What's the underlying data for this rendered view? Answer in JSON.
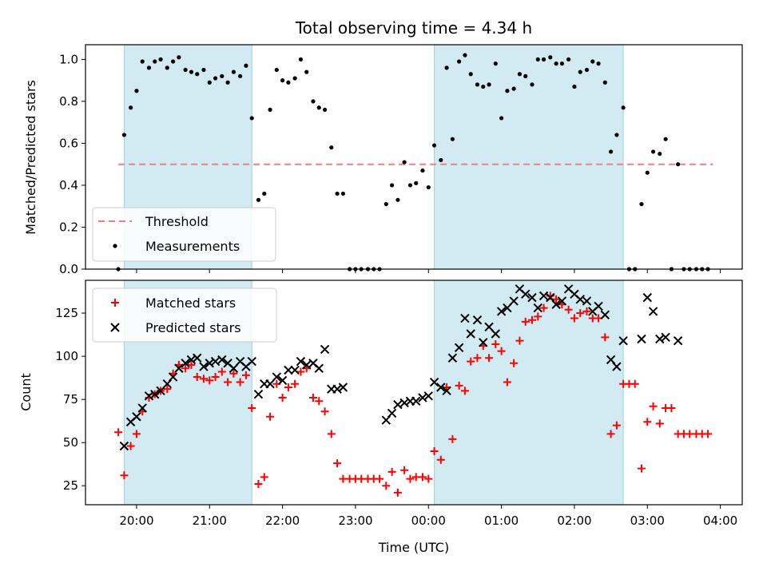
{
  "chart_data": {
    "title": "Total observing time = 4.34 h",
    "xlabel": "Time (UTC)",
    "x_unit": "hours since 00:00 UTC (negative = previous evening)",
    "xlim": [
      -4.7,
      4.3
    ],
    "x_ticks": [
      {
        "value": -4,
        "label": "20:00"
      },
      {
        "value": -3,
        "label": "21:00"
      },
      {
        "value": -2,
        "label": "22:00"
      },
      {
        "value": -1,
        "label": "23:00"
      },
      {
        "value": 0,
        "label": "00:00"
      },
      {
        "value": 1,
        "label": "01:00"
      },
      {
        "value": 2,
        "label": "02:00"
      },
      {
        "value": 3,
        "label": "03:00"
      },
      {
        "value": 4,
        "label": "04:00"
      }
    ],
    "shaded_intervals": [
      [
        -4.17,
        -2.42
      ],
      [
        0.08,
        2.67
      ]
    ],
    "shade_color": "#add8e6",
    "panels": [
      {
        "type": "scatter",
        "ylabel": "Matched/Predicted stars",
        "ylim": [
          0,
          1.07
        ],
        "y_ticks": [
          0.0,
          0.2,
          0.4,
          0.6,
          0.8,
          1.0
        ],
        "y_tick_labels": [
          "0.0",
          "0.2",
          "0.4",
          "0.6",
          "0.8",
          "1.0"
        ],
        "legend_position": "lower-left",
        "threshold": {
          "name": "Threshold",
          "y": 0.5,
          "x_range": [
            -4.25,
            3.9
          ],
          "color": "#f08080"
        },
        "series": [
          {
            "name": "Measurements",
            "marker": "dot",
            "color": "#000000",
            "x": [
              -4.25,
              -4.17,
              -4.08,
              -4.0,
              -3.92,
              -3.83,
              -3.75,
              -3.67,
              -3.58,
              -3.5,
              -3.42,
              -3.33,
              -3.25,
              -3.17,
              -3.08,
              -3.0,
              -2.92,
              -2.83,
              -2.75,
              -2.67,
              -2.58,
              -2.5,
              -2.42,
              -2.33,
              -2.25,
              -2.17,
              -2.08,
              -2.0,
              -1.92,
              -1.83,
              -1.75,
              -1.67,
              -1.58,
              -1.5,
              -1.42,
              -1.33,
              -1.25,
              -1.17,
              -1.08,
              -1.0,
              -0.92,
              -0.83,
              -0.75,
              -0.67,
              -0.58,
              -0.5,
              -0.42,
              -0.33,
              -0.25,
              -0.17,
              -0.08,
              0.0,
              0.08,
              0.17,
              0.25,
              0.33,
              0.42,
              0.5,
              0.58,
              0.67,
              0.75,
              0.83,
              0.92,
              1.0,
              1.08,
              1.17,
              1.25,
              1.33,
              1.42,
              1.5,
              1.58,
              1.67,
              1.75,
              1.83,
              1.92,
              2.0,
              2.08,
              2.17,
              2.25,
              2.33,
              2.42,
              2.5,
              2.58,
              2.67,
              2.75,
              2.83,
              2.92,
              3.0,
              3.08,
              3.17,
              3.25,
              3.33,
              3.42,
              3.5,
              3.58,
              3.67,
              3.75,
              3.83
            ],
            "y": [
              0.0,
              0.64,
              0.77,
              0.85,
              0.99,
              0.96,
              0.99,
              1.0,
              0.96,
              0.99,
              1.01,
              0.95,
              0.94,
              0.93,
              0.95,
              0.89,
              0.91,
              0.92,
              0.89,
              0.94,
              0.92,
              0.97,
              0.72,
              0.33,
              0.36,
              0.76,
              0.95,
              0.9,
              0.89,
              0.91,
              1.0,
              0.94,
              0.8,
              0.77,
              0.76,
              0.58,
              0.36,
              0.36,
              0.0,
              0.0,
              0.0,
              0.0,
              0.0,
              0.0,
              0.31,
              0.4,
              0.33,
              0.51,
              0.4,
              0.41,
              0.47,
              0.39,
              0.59,
              0.52,
              0.96,
              0.62,
              0.99,
              1.02,
              0.93,
              0.88,
              0.87,
              0.88,
              0.98,
              0.72,
              0.85,
              0.86,
              0.93,
              0.92,
              0.88,
              1.0,
              1.0,
              1.01,
              0.98,
              0.98,
              1.0,
              0.87,
              0.94,
              0.95,
              0.99,
              0.98,
              0.89,
              0.56,
              0.64,
              0.77,
              0.0,
              0.0,
              0.31,
              0.46,
              0.56,
              0.55,
              0.62,
              0.0,
              0.5,
              0.0,
              0.0,
              0.0,
              0.0,
              0.0
            ]
          }
        ]
      },
      {
        "type": "scatter",
        "ylabel": "Count",
        "ylim": [
          14,
          144
        ],
        "y_ticks": [
          25,
          50,
          75,
          100,
          125
        ],
        "y_tick_labels": [
          "25",
          "50",
          "75",
          "100",
          "125"
        ],
        "legend_position": "upper-left",
        "series": [
          {
            "name": "Matched stars",
            "marker": "plus",
            "color": "#ff0000",
            "x": [
              -4.25,
              -4.17,
              -4.08,
              -4.0,
              -3.92,
              -3.83,
              -3.75,
              -3.67,
              -3.58,
              -3.5,
              -3.42,
              -3.33,
              -3.25,
              -3.17,
              -3.08,
              -3.0,
              -2.92,
              -2.83,
              -2.75,
              -2.67,
              -2.58,
              -2.5,
              -2.42,
              -2.33,
              -2.25,
              -2.17,
              -2.08,
              -2.0,
              -1.92,
              -1.83,
              -1.75,
              -1.67,
              -1.58,
              -1.5,
              -1.42,
              -1.33,
              -1.25,
              -1.17,
              -1.08,
              -1.0,
              -0.92,
              -0.83,
              -0.75,
              -0.67,
              -0.58,
              -0.5,
              -0.42,
              -0.33,
              -0.25,
              -0.17,
              -0.08,
              0.0,
              0.08,
              0.17,
              0.25,
              0.33,
              0.42,
              0.5,
              0.58,
              0.67,
              0.75,
              0.83,
              0.92,
              1.0,
              1.08,
              1.17,
              1.25,
              1.33,
              1.42,
              1.5,
              1.58,
              1.67,
              1.75,
              1.83,
              1.92,
              2.0,
              2.08,
              2.17,
              2.25,
              2.33,
              2.42,
              2.5,
              2.58,
              2.67,
              2.75,
              2.83,
              2.92,
              3.0,
              3.08,
              3.17,
              3.25,
              3.33,
              3.42,
              3.5,
              3.58,
              3.67,
              3.75,
              3.83
            ],
            "y": [
              56,
              31,
              48,
              55,
              68,
              76,
              78,
              80,
              81,
              90,
              95,
              93,
              95,
              88,
              87,
              86,
              88,
              91,
              85,
              90,
              85,
              89,
              70,
              26,
              30,
              65,
              84,
              76,
              82,
              84,
              91,
              93,
              76,
              74,
              68,
              55,
              38,
              29,
              29,
              29,
              29,
              29,
              29,
              29,
              25,
              33,
              21,
              34,
              29,
              30,
              30,
              29,
              45,
              40,
              82,
              52,
              83,
              80,
              97,
              99,
              106,
              99,
              107,
              103,
              85,
              96,
              109,
              120,
              121,
              123,
              128,
              135,
              133,
              130,
              127,
              122,
              125,
              126,
              122,
              122,
              111,
              55,
              60,
              84,
              84,
              84,
              35,
              62,
              71,
              61,
              70,
              70,
              55,
              55,
              55,
              55,
              55,
              55
            ]
          },
          {
            "name": "Predicted stars",
            "marker": "x",
            "color": "#000000",
            "x": [
              -4.17,
              -4.08,
              -4.0,
              -3.92,
              -3.83,
              -3.75,
              -3.67,
              -3.58,
              -3.5,
              -3.42,
              -3.33,
              -3.25,
              -3.17,
              -3.08,
              -3.0,
              -2.92,
              -2.83,
              -2.75,
              -2.67,
              -2.58,
              -2.5,
              -2.42,
              -2.33,
              -2.25,
              -2.17,
              -2.08,
              -2.0,
              -1.92,
              -1.83,
              -1.75,
              -1.67,
              -1.58,
              -1.5,
              -1.42,
              -1.33,
              -1.25,
              -1.17,
              -0.58,
              -0.5,
              -0.42,
              -0.33,
              -0.25,
              -0.17,
              -0.08,
              0.0,
              0.08,
              0.17,
              0.25,
              0.33,
              0.42,
              0.5,
              0.58,
              0.67,
              0.75,
              0.83,
              0.92,
              1.0,
              1.08,
              1.17,
              1.25,
              1.33,
              1.42,
              1.5,
              1.58,
              1.67,
              1.75,
              1.83,
              1.92,
              2.0,
              2.08,
              2.17,
              2.25,
              2.33,
              2.42,
              2.5,
              2.58,
              2.67,
              2.92,
              3.0,
              3.08,
              3.17,
              3.25,
              3.42
            ],
            "y": [
              48,
              62,
              65,
              70,
              77,
              78,
              80,
              84,
              88,
              93,
              96,
              98,
              99,
              94,
              96,
              97,
              98,
              96,
              93,
              97,
              94,
              97,
              78,
              84,
              84,
              88,
              86,
              92,
              92,
              97,
              95,
              96,
              93,
              104,
              81,
              81,
              82,
              63,
              67,
              72,
              73,
              74,
              74,
              76,
              77,
              85,
              82,
              80,
              99,
              105,
              122,
              113,
              121,
              108,
              117,
              113,
              126,
              128,
              132,
              139,
              136,
              134,
              128,
              135,
              134,
              130,
              132,
              139,
              136,
              133,
              132,
              126,
              129,
              124,
              98,
              94,
              109,
              110,
              134,
              126,
              110,
              111,
              109
            ]
          }
        ]
      }
    ]
  }
}
